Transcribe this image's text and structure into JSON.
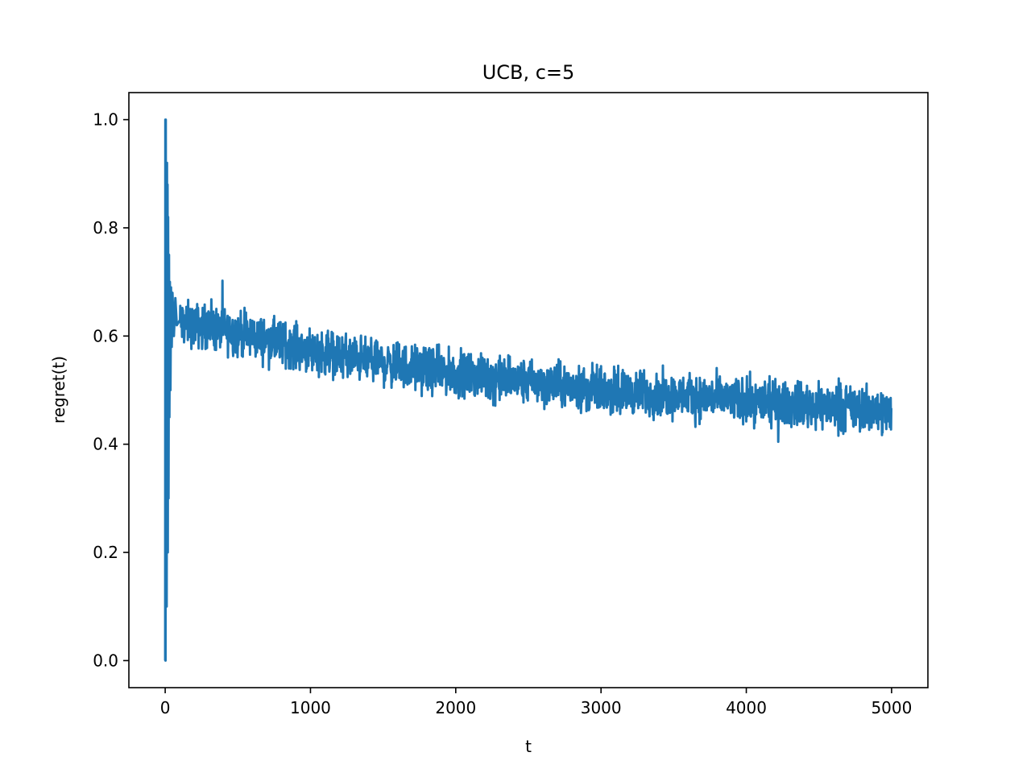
{
  "chart_data": {
    "type": "line",
    "title": "UCB, c=5",
    "xlabel": "t",
    "ylabel": "regret(t)",
    "xlim": [
      -250,
      5250
    ],
    "ylim": [
      -0.05,
      1.05
    ],
    "xticks": [
      0,
      1000,
      2000,
      3000,
      4000,
      5000
    ],
    "xtick_labels": [
      "0",
      "1000",
      "2000",
      "3000",
      "4000",
      "5000"
    ],
    "yticks": [
      0.0,
      0.2,
      0.4,
      0.6,
      0.8,
      1.0
    ],
    "ytick_labels": [
      "0.0",
      "0.2",
      "0.4",
      "0.6",
      "0.8",
      "1.0"
    ],
    "grid": false,
    "legend": false,
    "series": [
      {
        "color": "#1f77b4",
        "early_spikes": [
          [
            0,
            0.0
          ],
          [
            1,
            1.0
          ],
          [
            2,
            0.0
          ],
          [
            4,
            1.0
          ],
          [
            6,
            0.2
          ],
          [
            8,
            0.9
          ],
          [
            10,
            0.1
          ],
          [
            12,
            0.92
          ],
          [
            14,
            0.3
          ],
          [
            16,
            0.88
          ],
          [
            18,
            0.2
          ],
          [
            20,
            0.82
          ],
          [
            23,
            0.3
          ],
          [
            26,
            0.75
          ],
          [
            29,
            0.45
          ],
          [
            32,
            0.7
          ],
          [
            36,
            0.5
          ],
          [
            40,
            0.69
          ],
          [
            45,
            0.58
          ],
          [
            50,
            0.68
          ],
          [
            60,
            0.6
          ],
          [
            70,
            0.67
          ],
          [
            80,
            0.62
          ]
        ],
        "trend": [
          [
            100,
            0.625
          ],
          [
            500,
            0.605
          ],
          [
            1000,
            0.575
          ],
          [
            1500,
            0.55
          ],
          [
            2000,
            0.53
          ],
          [
            2500,
            0.515
          ],
          [
            3000,
            0.5
          ],
          [
            3500,
            0.49
          ],
          [
            4000,
            0.48
          ],
          [
            4500,
            0.47
          ],
          [
            5000,
            0.46
          ]
        ],
        "noise_amplitude": 0.02,
        "min_value": 0.0,
        "max_value": 1.0
      }
    ]
  }
}
